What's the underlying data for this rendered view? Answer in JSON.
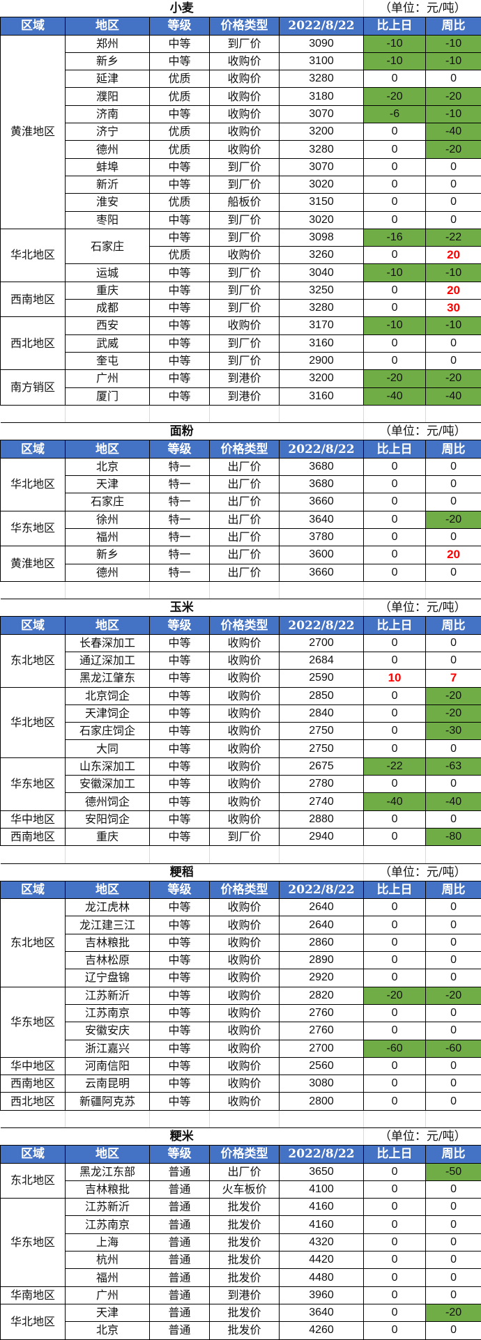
{
  "colors": {
    "header_bg": "#4472c4",
    "decrease_bg": "#70ad47",
    "increase_text": "#ff0000"
  },
  "header": [
    "区域",
    "地区",
    "等级",
    "价格类型",
    "2022/8/22",
    "比上日",
    "周比"
  ],
  "sections": [
    {
      "title": "小麦",
      "unit": "（单位：元/吨）",
      "groups": [
        {
          "region": "黄淮地区",
          "rows": [
            [
              "郑州",
              "中等",
              "到厂价",
              "3090",
              "-10",
              "-10"
            ],
            [
              "新乡",
              "中等",
              "收购价",
              "3100",
              "-10",
              "-10"
            ],
            [
              "延津",
              "优质",
              "收购价",
              "3280",
              "0",
              "0"
            ],
            [
              "濮阳",
              "优质",
              "收购价",
              "3180",
              "-20",
              "-20"
            ],
            [
              "济南",
              "中等",
              "收购价",
              "3070",
              "-6",
              "-10"
            ],
            [
              "济宁",
              "优质",
              "收购价",
              "3200",
              "0",
              "-40"
            ],
            [
              "德州",
              "优质",
              "收购价",
              "3280",
              "0",
              "-20"
            ],
            [
              "蚌埠",
              "中等",
              "到厂价",
              "3070",
              "0",
              "0"
            ],
            [
              "新沂",
              "中等",
              "到厂价",
              "3020",
              "0",
              "0"
            ],
            [
              "淮安",
              "优质",
              "船板价",
              "3150",
              "0",
              "0"
            ],
            [
              "枣阳",
              "中等",
              "到厂价",
              "3020",
              "0",
              "0"
            ]
          ]
        },
        {
          "region": "华北地区",
          "rows": [
            [
              "石家庄",
              "中等",
              "到厂价",
              "3098",
              "-16",
              "-22"
            ],
            [
              null,
              "优质",
              "收购价",
              "3260",
              "0",
              "20"
            ],
            [
              "运城",
              "中等",
              "到厂价",
              "3040",
              "-10",
              "-10"
            ]
          ]
        },
        {
          "region": "西南地区",
          "rows": [
            [
              "重庆",
              "中等",
              "到厂价",
              "3250",
              "0",
              "20"
            ],
            [
              "成都",
              "中等",
              "到厂价",
              "3280",
              "0",
              "30"
            ]
          ]
        },
        {
          "region": "西北地区",
          "rows": [
            [
              "西安",
              "中等",
              "收购价",
              "3170",
              "-10",
              "-10"
            ],
            [
              "武威",
              "中等",
              "到厂价",
              "3160",
              "0",
              "0"
            ],
            [
              "奎屯",
              "中等",
              "到厂价",
              "2900",
              "0",
              "0"
            ]
          ]
        },
        {
          "region": "南方销区",
          "rows": [
            [
              "广州",
              "中等",
              "到港价",
              "3200",
              "-20",
              "-20"
            ],
            [
              "厦门",
              "中等",
              "到港价",
              "3160",
              "-40",
              "-40"
            ]
          ]
        }
      ]
    },
    {
      "title": "面粉",
      "unit": "（单位：元/吨）",
      "groups": [
        {
          "region": "华北地区",
          "rows": [
            [
              "北京",
              "特一",
              "出厂价",
              "3680",
              "0",
              "0"
            ],
            [
              "天津",
              "特一",
              "出厂价",
              "3680",
              "0",
              "0"
            ],
            [
              "石家庄",
              "特一",
              "出厂价",
              "3660",
              "0",
              "0"
            ]
          ]
        },
        {
          "region": "华东地区",
          "rows": [
            [
              "徐州",
              "特一",
              "出厂价",
              "3640",
              "0",
              "-20"
            ],
            [
              "福州",
              "特一",
              "出厂价",
              "3780",
              "0",
              "0"
            ]
          ]
        },
        {
          "region": "黄淮地区",
          "rows": [
            [
              "新乡",
              "特一",
              "出厂价",
              "3600",
              "0",
              "20"
            ],
            [
              "德州",
              "特一",
              "出厂价",
              "3660",
              "0",
              "0"
            ]
          ]
        }
      ]
    },
    {
      "title": "玉米",
      "unit": "（单位：元/吨）",
      "groups": [
        {
          "region": "东北地区",
          "rows": [
            [
              "长春深加工",
              "中等",
              "收购价",
              "2700",
              "0",
              "0"
            ],
            [
              "通辽深加工",
              "中等",
              "收购价",
              "2684",
              "0",
              "0"
            ],
            [
              "黑龙江肇东",
              "中等",
              "收购价",
              "2590",
              "10",
              "7"
            ]
          ]
        },
        {
          "region": "华北地区",
          "rows": [
            [
              "北京饲企",
              "中等",
              "收购价",
              "2850",
              "0",
              "-20"
            ],
            [
              "天津饲企",
              "中等",
              "收购价",
              "2840",
              "0",
              "-20"
            ],
            [
              "石家庄饲企",
              "中等",
              "收购价",
              "2750",
              "0",
              "-30"
            ],
            [
              "大同",
              "中等",
              "收购价",
              "2750",
              "0",
              "0"
            ]
          ]
        },
        {
          "region": "华东地区",
          "rows": [
            [
              "山东深加工",
              "中等",
              "收购价",
              "2675",
              "-22",
              "-63"
            ],
            [
              "安徽深加工",
              "中等",
              "收购价",
              "2780",
              "0",
              "0"
            ],
            [
              "德州饲企",
              "中等",
              "收购价",
              "2740",
              "-40",
              "-40"
            ]
          ]
        },
        {
          "region": "华中地区",
          "rows": [
            [
              "安阳饲企",
              "中等",
              "收购价",
              "2880",
              "0",
              "0"
            ]
          ]
        },
        {
          "region": "西南地区",
          "rows": [
            [
              "重庆",
              "中等",
              "到厂价",
              "2940",
              "0",
              "-80"
            ]
          ]
        }
      ]
    },
    {
      "title": "粳稻",
      "unit": "（单位：元/吨）",
      "groups": [
        {
          "region": "东北地区",
          "rows": [
            [
              "龙江虎林",
              "中等",
              "收购价",
              "2640",
              "0",
              "0"
            ],
            [
              "龙江建三江",
              "中等",
              "收购价",
              "2640",
              "0",
              "0"
            ],
            [
              "吉林粮批",
              "中等",
              "收购价",
              "2860",
              "0",
              "0"
            ],
            [
              "吉林松原",
              "中等",
              "收购价",
              "2890",
              "0",
              "0"
            ],
            [
              "辽宁盘锦",
              "中等",
              "收购价",
              "2920",
              "0",
              "0"
            ]
          ]
        },
        {
          "region": "华东地区",
          "rows": [
            [
              "江苏新沂",
              "中等",
              "收购价",
              "2820",
              "-20",
              "-20"
            ],
            [
              "江苏南京",
              "中等",
              "收购价",
              "2760",
              "0",
              "0"
            ],
            [
              "安徽安庆",
              "中等",
              "收购价",
              "2760",
              "0",
              "0"
            ],
            [
              "浙江嘉兴",
              "中等",
              "收购价",
              "2700",
              "-60",
              "-60"
            ]
          ]
        },
        {
          "region": "华中地区",
          "rows": [
            [
              "河南信阳",
              "中等",
              "收购价",
              "2560",
              "0",
              "0"
            ]
          ]
        },
        {
          "region": "西南地区",
          "rows": [
            [
              "云南昆明",
              "中等",
              "收购价",
              "3080",
              "0",
              "0"
            ]
          ]
        },
        {
          "region": "西北地区",
          "rows": [
            [
              "新疆阿克苏",
              "中等",
              "收购价",
              "2800",
              "0",
              "0"
            ]
          ]
        }
      ]
    },
    {
      "title": "粳米",
      "unit": "（单位：元/吨）",
      "groups": [
        {
          "region": "东北地区",
          "rows": [
            [
              "黑龙江东部",
              "普通",
              "出厂价",
              "3650",
              "0",
              "-50"
            ],
            [
              "吉林粮批",
              "普通",
              "火车板价",
              "4100",
              "0",
              "0"
            ]
          ]
        },
        {
          "region": "华东地区",
          "rows": [
            [
              "江苏新沂",
              "普通",
              "批发价",
              "4160",
              "0",
              "0"
            ],
            [
              "江苏南京",
              "普通",
              "批发价",
              "4160",
              "0",
              "0"
            ],
            [
              "上海",
              "普通",
              "批发价",
              "4320",
              "0",
              "0"
            ],
            [
              "杭州",
              "普通",
              "批发价",
              "4420",
              "0",
              "0"
            ],
            [
              "福州",
              "普通",
              "批发价",
              "4480",
              "0",
              "0"
            ]
          ]
        },
        {
          "region": "华南地区",
          "rows": [
            [
              "广州",
              "普通",
              "到港价",
              "3960",
              "0",
              "0"
            ]
          ]
        },
        {
          "region": "华北地区",
          "rows": [
            [
              "天津",
              "普通",
              "批发价",
              "3640",
              "0",
              "-20"
            ],
            [
              "北京",
              "普通",
              "批发价",
              "4260",
              "0",
              "0"
            ]
          ]
        }
      ]
    }
  ]
}
